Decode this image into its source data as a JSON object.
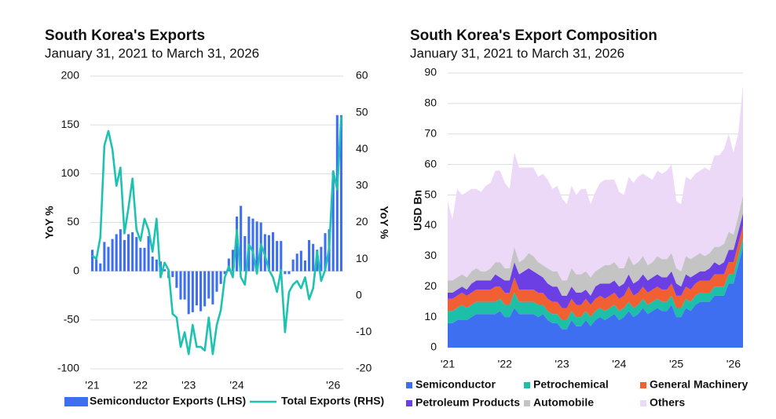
{
  "chart_data": [
    {
      "type": "bar",
      "title": "South Korea's Exports",
      "subtitle": "January 31, 2021 to March 31, 2026",
      "ylabel": "YoY %",
      "y2label": "YoY %",
      "categories": [
        "'21",
        null,
        null,
        null,
        null,
        null,
        null,
        null,
        null,
        null,
        null,
        null,
        "'22",
        null,
        null,
        null,
        null,
        null,
        null,
        null,
        null,
        null,
        null,
        null,
        "'23",
        null,
        null,
        null,
        null,
        null,
        null,
        null,
        null,
        null,
        null,
        null,
        "'24",
        null,
        null,
        null,
        null,
        null,
        null,
        null,
        null,
        null,
        null,
        null,
        null,
        null,
        null,
        null,
        null,
        null,
        null,
        null,
        null,
        null,
        null,
        null,
        "'26",
        null,
        null
      ],
      "series": [
        {
          "name": "Semiconductor Exports (LHS)",
          "color": "#3e6ff0",
          "values": [
            22,
            12,
            8,
            30,
            25,
            33,
            38,
            43,
            32,
            38,
            40,
            35,
            24,
            24,
            36,
            15,
            12,
            10,
            2,
            -7,
            -6,
            -17,
            -29,
            -29,
            -44,
            -42,
            -35,
            -41,
            -36,
            -28,
            -34,
            -21,
            -13,
            -3,
            13,
            22,
            56,
            67,
            36,
            56,
            54,
            51,
            50,
            38,
            37,
            40,
            31,
            31,
            -3,
            -3,
            12,
            18,
            21,
            11,
            32,
            28,
            22,
            25,
            39,
            43,
            102,
            160,
            160
          ]
        },
        {
          "name": "Total Exports (RHS)",
          "color": "#1ec2b0",
          "type": "line",
          "axis": "y2",
          "values": [
            11,
            10,
            16,
            41,
            45,
            40,
            30,
            35,
            17,
            24,
            32,
            18,
            15,
            21,
            18,
            12,
            21,
            5,
            9,
            7,
            -5,
            -6,
            -14,
            -10,
            -16,
            -8,
            -14,
            -14,
            -15,
            -6,
            -16,
            -8,
            -4,
            5,
            8,
            5,
            18,
            5,
            3,
            14,
            12,
            6,
            14,
            11,
            7,
            5,
            1,
            7,
            -10,
            1,
            3,
            4,
            2,
            5,
            -1,
            2,
            12,
            4,
            7,
            13,
            34,
            29,
            49
          ]
        }
      ],
      "ylim": [
        -100,
        200
      ],
      "yticks": [
        -100,
        -50,
        0,
        50,
        100,
        150,
        200
      ],
      "y2lim": [
        -20,
        60
      ],
      "y2ticks": [
        -20,
        -10,
        0,
        10,
        20,
        30,
        40,
        50,
        60
      ],
      "grid": true,
      "legend": "bottom"
    },
    {
      "type": "area",
      "stacked": true,
      "title": "South Korea's Export Composition",
      "subtitle": "January 31, 2021 to March 31, 2026",
      "ylabel": "USD Bn",
      "categories": [
        "'21",
        null,
        null,
        null,
        null,
        null,
        null,
        null,
        null,
        null,
        null,
        null,
        "'22",
        null,
        null,
        null,
        null,
        null,
        null,
        null,
        null,
        null,
        null,
        null,
        "'23",
        null,
        null,
        null,
        null,
        null,
        null,
        null,
        null,
        null,
        null,
        null,
        "'24",
        null,
        null,
        null,
        null,
        null,
        null,
        null,
        null,
        null,
        null,
        null,
        "'25",
        null,
        null,
        null,
        null,
        null,
        null,
        null,
        null,
        null,
        null,
        null,
        "'26",
        null,
        null
      ],
      "series": [
        {
          "name": "Semiconductor",
          "color": "#3e6ff0",
          "values": [
            8,
            8,
            9,
            9,
            9,
            10,
            11,
            11,
            11,
            11,
            11,
            12,
            10,
            10,
            13,
            11,
            11,
            11,
            11,
            10,
            11,
            9,
            8,
            8,
            6,
            6,
            9,
            7,
            7,
            9,
            7,
            9,
            10,
            9,
            10,
            11,
            9,
            10,
            12,
            10,
            11,
            13,
            11,
            12,
            13,
            12,
            12,
            14,
            10,
            10,
            13,
            12,
            14,
            15,
            15,
            15,
            17,
            17,
            17,
            21,
            21,
            27,
            33
          ]
        },
        {
          "name": "Petrochemical",
          "color": "#1dbfa8",
          "values": [
            4,
            4,
            4,
            5,
            4,
            4,
            4,
            4,
            4,
            4,
            4,
            4,
            4,
            4,
            5,
            4,
            4,
            4,
            4,
            4,
            3,
            3,
            3,
            3,
            3,
            3,
            3,
            3,
            3,
            3,
            3,
            3,
            3,
            3,
            3,
            3,
            3,
            3,
            3,
            3,
            3,
            3,
            3,
            3,
            3,
            3,
            3,
            3,
            3,
            3,
            3,
            3,
            3,
            3,
            3,
            3,
            3,
            3,
            3,
            3,
            3,
            3,
            3
          ]
        },
        {
          "name": "General Machinery",
          "color": "#f06033",
          "values": [
            4,
            4,
            4,
            4,
            4,
            4,
            4,
            4,
            4,
            4,
            5,
            4,
            4,
            4,
            5,
            4,
            4,
            4,
            4,
            4,
            4,
            4,
            4,
            4,
            4,
            4,
            4,
            4,
            4,
            4,
            4,
            4,
            4,
            4,
            4,
            4,
            4,
            4,
            5,
            4,
            4,
            4,
            4,
            4,
            4,
            4,
            4,
            4,
            4,
            4,
            4,
            4,
            4,
            4,
            4,
            4,
            4,
            4,
            4,
            4,
            4,
            4,
            4
          ]
        },
        {
          "name": "Petroleum Products",
          "color": "#6b3fe3",
          "values": [
            2,
            2,
            2,
            2,
            2,
            3,
            3,
            3,
            3,
            3,
            4,
            3,
            4,
            4,
            5,
            5,
            6,
            7,
            6,
            6,
            5,
            5,
            5,
            5,
            4,
            4,
            4,
            4,
            4,
            3,
            3,
            4,
            4,
            5,
            4,
            4,
            4,
            4,
            4,
            4,
            4,
            4,
            4,
            4,
            4,
            4,
            4,
            4,
            4,
            3,
            4,
            4,
            3,
            3,
            3,
            4,
            4,
            3,
            4,
            4,
            4,
            4,
            4
          ]
        },
        {
          "name": "Automobile",
          "color": "#c4c4c4",
          "values": [
            4,
            4,
            4,
            4,
            4,
            4,
            4,
            3,
            3,
            4,
            4,
            5,
            4,
            4,
            5,
            4,
            4,
            5,
            5,
            4,
            4,
            5,
            5,
            5,
            5,
            5,
            6,
            6,
            6,
            6,
            6,
            5,
            5,
            6,
            6,
            6,
            6,
            5,
            6,
            6,
            6,
            6,
            5,
            5,
            6,
            6,
            6,
            6,
            5,
            5,
            6,
            6,
            6,
            6,
            5,
            5,
            5,
            6,
            6,
            6,
            5,
            5,
            6
          ]
        },
        {
          "name": "Others",
          "color": "#ecd9f7",
          "values": [
            26,
            20,
            29,
            26,
            28,
            27,
            26,
            26,
            28,
            28,
            30,
            30,
            28,
            26,
            31,
            31,
            30,
            28,
            29,
            28,
            30,
            29,
            27,
            28,
            27,
            25,
            27,
            26,
            28,
            27,
            24,
            26,
            28,
            28,
            28,
            27,
            25,
            24,
            26,
            27,
            28,
            27,
            29,
            27,
            28,
            28,
            29,
            29,
            22,
            22,
            26,
            26,
            27,
            27,
            29,
            27,
            30,
            30,
            31,
            32,
            27,
            27,
            36
          ]
        }
      ],
      "ylim": [
        0,
        90
      ],
      "yticks": [
        0,
        10,
        20,
        30,
        40,
        50,
        60,
        70,
        80,
        90
      ],
      "grid": true,
      "legend": "bottom"
    }
  ]
}
